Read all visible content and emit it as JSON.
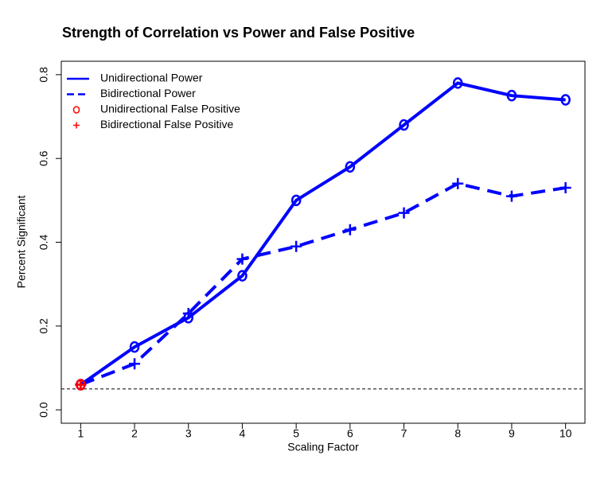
{
  "chart_data": {
    "type": "line",
    "title": "Strength of Correlation vs Power and False Positive",
    "x_label": "Scaling Factor",
    "y_label": "Percent Significant",
    "x": [
      1,
      2,
      3,
      4,
      5,
      6,
      7,
      8,
      9,
      10
    ],
    "series": [
      {
        "name": "Unidirectional Power",
        "color": "#0000ff",
        "linestyle": "solid",
        "marker": "o",
        "values": [
          0.06,
          0.15,
          0.22,
          0.32,
          0.5,
          0.58,
          0.68,
          0.78,
          0.75,
          0.74
        ]
      },
      {
        "name": "Bidirectional Power",
        "color": "#0000ff",
        "linestyle": "dashed",
        "marker": "+",
        "values": [
          0.06,
          0.11,
          0.23,
          0.36,
          0.39,
          0.43,
          0.47,
          0.54,
          0.51,
          0.53
        ]
      },
      {
        "name": "Unidirectional False Positive",
        "color": "#ff0000",
        "linestyle": "none",
        "marker": "o",
        "x": [
          1
        ],
        "values": [
          0.06
        ]
      },
      {
        "name": "Bidirectional False Positive",
        "color": "#ff0000",
        "linestyle": "none",
        "marker": "+",
        "x": [
          1
        ],
        "values": [
          0.06
        ]
      }
    ],
    "hline": 0.05,
    "xlim": [
      0.64,
      10.36
    ],
    "xticks": [
      1,
      2,
      3,
      4,
      5,
      6,
      7,
      8,
      9,
      10
    ],
    "ylim": [
      -0.032,
      0.832
    ],
    "yticks": [
      {
        "value": 0,
        "label": "0.0"
      },
      0.2,
      0.4,
      0.6,
      0.8
    ],
    "legend": "top-left"
  }
}
